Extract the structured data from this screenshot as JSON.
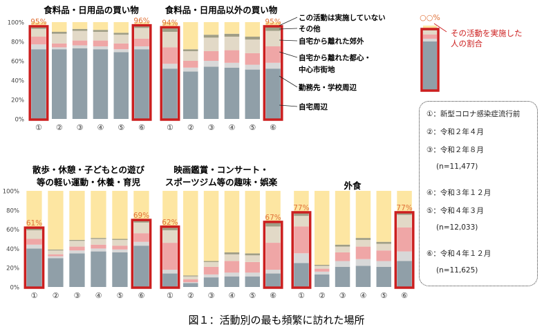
{
  "caption": "図１：活動別の最も頻繁に訪れた場所",
  "colors": {
    "home": "#909fa8",
    "work": "#d8d8d8",
    "central": "#efa6a6",
    "suburb": "#e2d9c7",
    "other": "#a09e86",
    "none": "#fde6a2",
    "highlight": "#cc1f1f",
    "pct_text": "#e07036"
  },
  "series_labels": [
    "この活動は実施していない",
    "その他",
    "自宅から離れた郊外",
    "自宅から離れた都心・",
    "中心市街地",
    "勤務先・学校周辺",
    "自宅周辺"
  ],
  "yticks": [
    "0%",
    "20%",
    "40%",
    "60%",
    "80%",
    "100%"
  ],
  "xticks": [
    "①",
    "②",
    "③",
    "④",
    "⑤",
    "⑥"
  ],
  "key": {
    "pct": "○○%",
    "text_line1": "その活動を実施した",
    "text_line2": "人の割合"
  },
  "period_legend": [
    "①：新型コロナ感染症流行前",
    "②：令和２年４月",
    "③：令和２年８月",
    "(n=11,477)",
    "④：令和３年１２月",
    "⑤：令和４年３月",
    "(n=12,033)",
    "⑥：令和４年１２月",
    "(n=11,625)"
  ],
  "chart_data": [
    {
      "type": "bar",
      "stacked": true,
      "title": "食料品・日用品の買い物",
      "categories": [
        "①",
        "②",
        "③",
        "④",
        "⑤",
        "⑥"
      ],
      "highlight": [
        {
          "category": "①",
          "pct": "95%"
        },
        {
          "category": "⑥",
          "pct": "96%"
        }
      ],
      "ylim": [
        0,
        100
      ],
      "series": [
        {
          "name": "自宅周辺",
          "values": [
            72,
            72,
            73,
            72,
            69,
            72
          ]
        },
        {
          "name": "勤務先・学校周辺",
          "values": [
            5,
            2,
            3,
            3,
            3,
            3
          ]
        },
        {
          "name": "自宅から離れた都心・中心市街地",
          "values": [
            8,
            4,
            5,
            6,
            6,
            8
          ]
        },
        {
          "name": "自宅から離れた郊外",
          "values": [
            8,
            10,
            10,
            9,
            9,
            11
          ]
        },
        {
          "name": "その他",
          "values": [
            2,
            2,
            2,
            2,
            2,
            2
          ]
        },
        {
          "name": "この活動は実施していない",
          "values": [
            5,
            10,
            7,
            8,
            11,
            4
          ]
        }
      ]
    },
    {
      "type": "bar",
      "stacked": true,
      "title": "食料品・日用品以外の買い物",
      "categories": [
        "①",
        "②",
        "③",
        "④",
        "⑤",
        "⑥"
      ],
      "highlight": [
        {
          "category": "①",
          "pct": "94%"
        },
        {
          "category": "⑥",
          "pct": "95%"
        }
      ],
      "ylim": [
        0,
        100
      ],
      "series": [
        {
          "name": "自宅周辺",
          "values": [
            52,
            49,
            54,
            53,
            51,
            52
          ]
        },
        {
          "name": "勤務先・学校周辺",
          "values": [
            5,
            4,
            6,
            5,
            5,
            6
          ]
        },
        {
          "name": "自宅から離れた都心・中心市街地",
          "values": [
            17,
            7,
            10,
            13,
            12,
            17
          ]
        },
        {
          "name": "自宅から離れた郊外",
          "values": [
            16,
            10,
            14,
            14,
            14,
            16
          ]
        },
        {
          "name": "その他",
          "values": [
            4,
            2,
            3,
            3,
            3,
            4
          ]
        },
        {
          "name": "この活動は実施していない",
          "values": [
            6,
            28,
            13,
            12,
            15,
            5
          ]
        }
      ]
    },
    {
      "type": "bar",
      "stacked": true,
      "title": "散歩・休憩・子どもとの遊び等の軽い運動・休養・育児",
      "categories": [
        "①",
        "②",
        "③",
        "④",
        "⑤",
        "⑥"
      ],
      "highlight": [
        {
          "category": "①",
          "pct": "61%"
        },
        {
          "category": "⑥",
          "pct": "69%"
        }
      ],
      "ylim": [
        0,
        100
      ],
      "series": [
        {
          "name": "自宅周辺",
          "values": [
            40,
            30,
            35,
            37,
            36,
            43
          ]
        },
        {
          "name": "勤務先・学校周辺",
          "values": [
            4,
            2,
            3,
            3,
            3,
            4
          ]
        },
        {
          "name": "自宅から離れた都心・中心市街地",
          "values": [
            6,
            2,
            4,
            4,
            4,
            9
          ]
        },
        {
          "name": "自宅から離れた郊外",
          "values": [
            9,
            4,
            6,
            6,
            6,
            11
          ]
        },
        {
          "name": "その他",
          "values": [
            2,
            1,
            1,
            1,
            1,
            2
          ]
        },
        {
          "name": "この活動は実施していない",
          "values": [
            39,
            61,
            51,
            49,
            50,
            31
          ]
        }
      ]
    },
    {
      "type": "bar",
      "stacked": true,
      "title": "映画鑑賞・コンサート・スポーツジム等の趣味・娯楽",
      "categories": [
        "①",
        "②",
        "③",
        "④",
        "⑤",
        "⑥"
      ],
      "highlight": [
        {
          "category": "①",
          "pct": "62%"
        },
        {
          "category": "⑥",
          "pct": "67%"
        }
      ],
      "ylim": [
        0,
        100
      ],
      "series": [
        {
          "name": "自宅周辺",
          "values": [
            14,
            4,
            10,
            11,
            11,
            14
          ]
        },
        {
          "name": "勤務先・学校周辺",
          "values": [
            4,
            1,
            3,
            4,
            4,
            4
          ]
        },
        {
          "name": "自宅から離れた都心・中心市街地",
          "values": [
            28,
            3,
            8,
            12,
            11,
            28
          ]
        },
        {
          "name": "自宅から離れた郊外",
          "values": [
            13,
            3,
            5,
            7,
            7,
            17
          ]
        },
        {
          "name": "その他",
          "values": [
            3,
            1,
            1,
            2,
            2,
            4
          ]
        },
        {
          "name": "この活動は実施していない",
          "values": [
            38,
            88,
            73,
            64,
            65,
            33
          ]
        }
      ]
    },
    {
      "type": "bar",
      "stacked": true,
      "title": "外食",
      "categories": [
        "①",
        "②",
        "③",
        "④",
        "⑤",
        "⑥"
      ],
      "highlight": [
        {
          "category": "①",
          "pct": "77%"
        },
        {
          "category": "⑥",
          "pct": "77%"
        }
      ],
      "ylim": [
        0,
        100
      ],
      "series": [
        {
          "name": "自宅周辺",
          "values": [
            25,
            13,
            21,
            22,
            21,
            27
          ]
        },
        {
          "name": "勤務先・学校周辺",
          "values": [
            10,
            3,
            6,
            7,
            6,
            10
          ]
        },
        {
          "name": "自宅から離れた都心・中心市街地",
          "values": [
            28,
            3,
            9,
            13,
            11,
            25
          ]
        },
        {
          "name": "自宅から離れた郊外",
          "values": [
            11,
            3,
            6,
            7,
            7,
            13
          ]
        },
        {
          "name": "その他",
          "values": [
            3,
            1,
            2,
            2,
            2,
            3
          ]
        },
        {
          "name": "この活動は実施していない",
          "values": [
            23,
            77,
            56,
            49,
            53,
            22
          ]
        }
      ]
    }
  ]
}
